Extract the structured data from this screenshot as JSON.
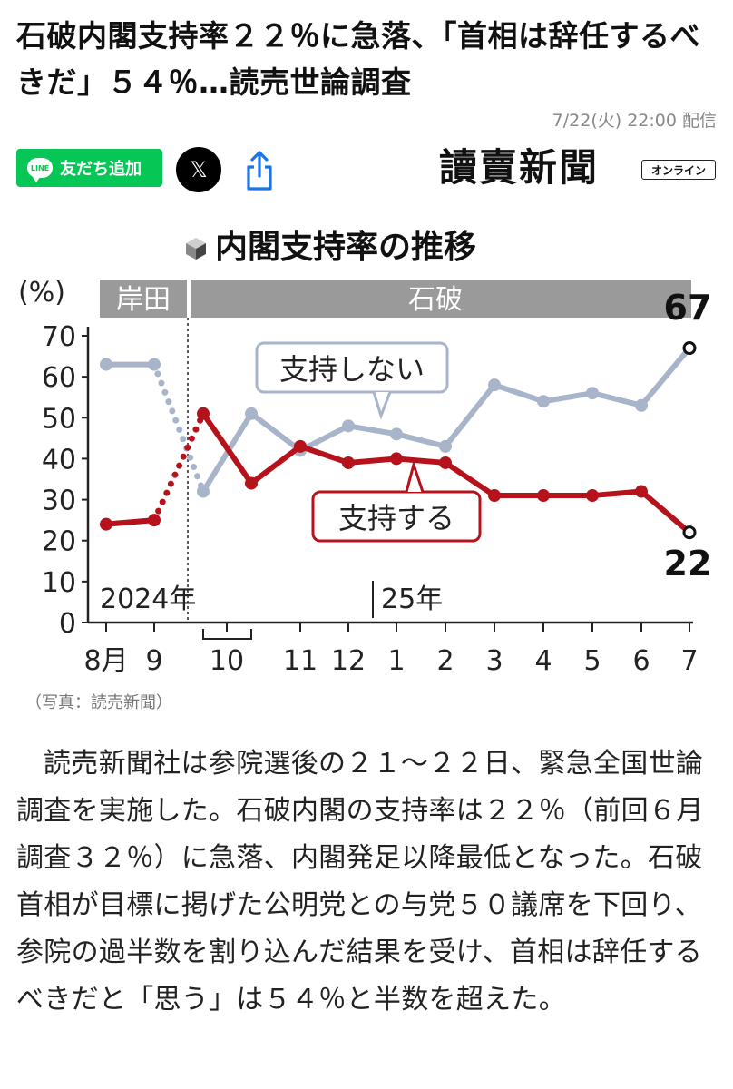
{
  "article": {
    "headline": "石破内閣支持率２２％に急落、「首相は辞任するべきだ」５４％…読売世論調査",
    "dateline": "7/22(火) 22:00 配信",
    "caption": "（写真：読売新聞）",
    "body": "読売新聞社は参院選後の２１〜２２日、緊急全国世論調査を実施した。石破内閣の支持率は２２％（前回６月調査３２％）に急落、内閣発足以降最低となった。石破首相が目標に掲げた公明党との与党５０議席を下回り、参院の過半数を割り込んだ結果を受け、首相は辞任するべきだと「思う」は５４％と半数を超えた。"
  },
  "share": {
    "line_badge": "LINE",
    "line_label": "友だち追加",
    "x_label": "𝕏",
    "logo_text": "讀賣新聞",
    "online_tag": "オンライン"
  },
  "colors": {
    "support": "#b5121b",
    "nonsupport": "#a7b4c9",
    "band": "#9a9a9a",
    "line_green": "#06c755"
  },
  "chart_data": {
    "type": "line",
    "title": "内閣支持率の推移",
    "ylabel": "(%)",
    "ylim": [
      0,
      70
    ],
    "yticks": [
      0,
      10,
      20,
      30,
      40,
      50,
      60,
      70
    ],
    "categories": [
      "8月",
      "9",
      "10",
      "11",
      "12",
      "1",
      "2",
      "3",
      "4",
      "5",
      "6",
      "7"
    ],
    "year_labels": [
      "2024年",
      "25年"
    ],
    "periods": [
      "岸田",
      "石破"
    ],
    "series": [
      {
        "name": "支持する",
        "color": "#b5121b",
        "points": [
          {
            "x": "8月",
            "y": 24
          },
          {
            "x": "9",
            "y": 25
          },
          {
            "x": "10 (early)",
            "y": 51
          },
          {
            "x": "10 (late)",
            "y": 34
          },
          {
            "x": "11",
            "y": 43
          },
          {
            "x": "12",
            "y": 39
          },
          {
            "x": "1",
            "y": 40
          },
          {
            "x": "2",
            "y": 39
          },
          {
            "x": "3",
            "y": 31
          },
          {
            "x": "4",
            "y": 31
          },
          {
            "x": "5",
            "y": 31
          },
          {
            "x": "6",
            "y": 32
          },
          {
            "x": "7",
            "y": 22
          }
        ]
      },
      {
        "name": "支持しない",
        "color": "#a7b4c9",
        "points": [
          {
            "x": "8月",
            "y": 63
          },
          {
            "x": "9",
            "y": 63
          },
          {
            "x": "10 (early)",
            "y": 32
          },
          {
            "x": "10 (late)",
            "y": 51
          },
          {
            "x": "11",
            "y": 42
          },
          {
            "x": "12",
            "y": 48
          },
          {
            "x": "1",
            "y": 46
          },
          {
            "x": "2",
            "y": 43
          },
          {
            "x": "3",
            "y": 58
          },
          {
            "x": "4",
            "y": 54
          },
          {
            "x": "5",
            "y": 56
          },
          {
            "x": "6",
            "y": 53
          },
          {
            "x": "7",
            "y": 67
          }
        ]
      }
    ],
    "end_labels": [
      "67",
      "22"
    ]
  }
}
